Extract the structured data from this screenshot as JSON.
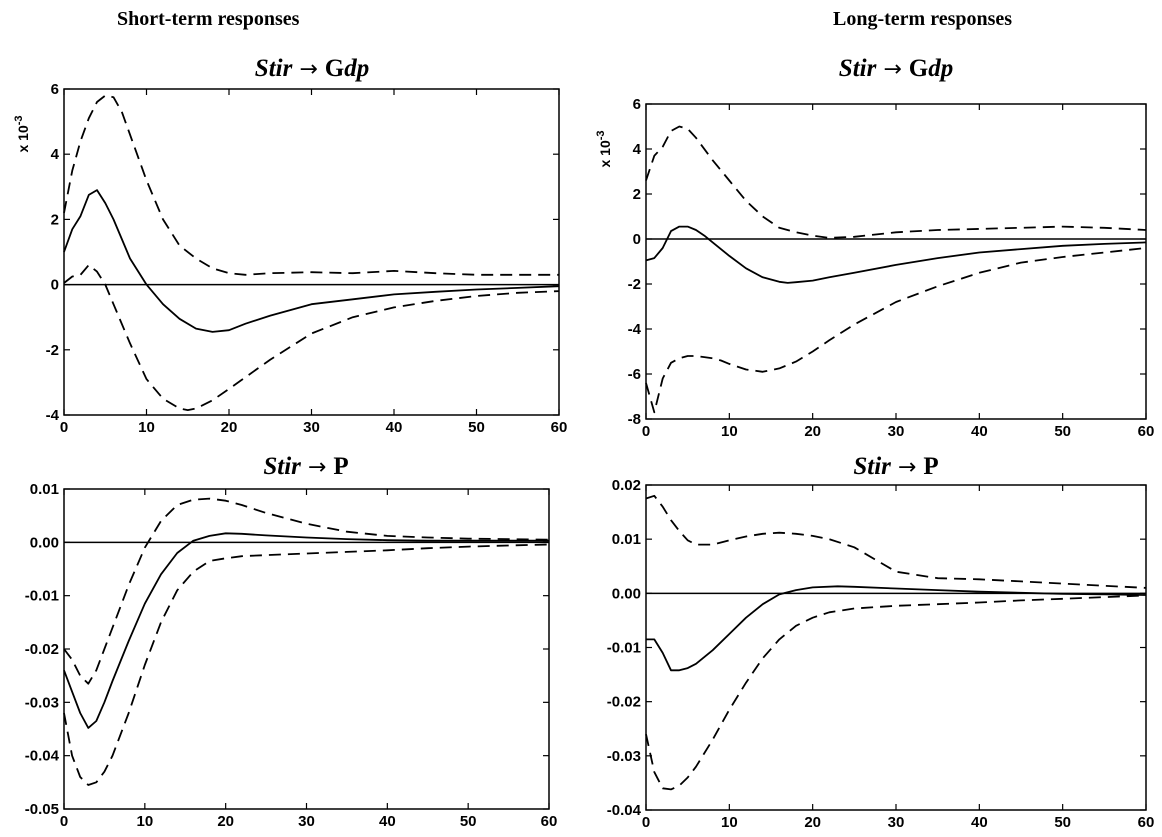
{
  "column_headings": {
    "left": "Short-term responses",
    "right": "Long-term responses"
  },
  "chart_data": [
    {
      "type": "line",
      "title": "Stir → Gdp",
      "title_parts": {
        "shock": "Stir",
        "arrow": "→",
        "variable_prefix": "G",
        "variable_suffix": "dp"
      },
      "y_multiplier": "x 10",
      "y_multiplier_exponent": "-3",
      "xlim": [
        0,
        60
      ],
      "ylim": [
        -4,
        6
      ],
      "xticks": [
        0,
        10,
        20,
        30,
        40,
        50,
        60
      ],
      "yticks": [
        -4,
        -2,
        0,
        2,
        4,
        6
      ],
      "ytick_labels": [
        "-4",
        "-2",
        "0",
        "2",
        "4",
        "6"
      ],
      "zero_line": true,
      "series": [
        {
          "role": "response",
          "style": "solid",
          "x": [
            0,
            1,
            2,
            3,
            4,
            5,
            6,
            7,
            8,
            9,
            10,
            12,
            14,
            16,
            18,
            20,
            22,
            25,
            30,
            35,
            40,
            45,
            50,
            55,
            60
          ],
          "y": [
            1.0,
            1.7,
            2.1,
            2.75,
            2.9,
            2.5,
            2.0,
            1.4,
            0.8,
            0.4,
            0.0,
            -0.6,
            -1.05,
            -1.35,
            -1.45,
            -1.4,
            -1.2,
            -0.95,
            -0.6,
            -0.45,
            -0.3,
            -0.22,
            -0.15,
            -0.1,
            -0.05
          ]
        },
        {
          "role": "upper band",
          "style": "dashed",
          "x": [
            0,
            1,
            2,
            3,
            4,
            5,
            6,
            7,
            8,
            10,
            12,
            14,
            16,
            18,
            20,
            22,
            25,
            30,
            35,
            40,
            45,
            50,
            55,
            60
          ],
          "y": [
            2.2,
            3.5,
            4.4,
            5.1,
            5.6,
            5.8,
            5.75,
            5.3,
            4.6,
            3.2,
            2.0,
            1.2,
            0.8,
            0.5,
            0.35,
            0.3,
            0.35,
            0.38,
            0.35,
            0.42,
            0.35,
            0.3,
            0.3,
            0.3
          ]
        },
        {
          "role": "lower band",
          "style": "dashed",
          "x": [
            0,
            1,
            2,
            3,
            4,
            5,
            6,
            8,
            10,
            12,
            14,
            15,
            16,
            18,
            20,
            25,
            30,
            35,
            40,
            45,
            50,
            55,
            60
          ],
          "y": [
            0.05,
            0.25,
            0.3,
            0.6,
            0.4,
            0.0,
            -0.6,
            -1.8,
            -2.9,
            -3.5,
            -3.8,
            -3.85,
            -3.8,
            -3.55,
            -3.2,
            -2.3,
            -1.5,
            -1.0,
            -0.7,
            -0.5,
            -0.35,
            -0.25,
            -0.2
          ]
        }
      ]
    },
    {
      "type": "line",
      "title": "Stir → Gdp",
      "title_parts": {
        "shock": "Stir",
        "arrow": "→",
        "variable_prefix": "G",
        "variable_suffix": "dp"
      },
      "y_multiplier": "x 10",
      "y_multiplier_exponent": "-3",
      "xlim": [
        0,
        60
      ],
      "ylim": [
        -8,
        6
      ],
      "xticks": [
        0,
        10,
        20,
        30,
        40,
        50,
        60
      ],
      "yticks": [
        -8,
        -6,
        -4,
        -2,
        0,
        2,
        4,
        6
      ],
      "ytick_labels": [
        "-8",
        "-6",
        "-4",
        "-2",
        "0",
        "2",
        "4",
        "6"
      ],
      "zero_line": true,
      "series": [
        {
          "role": "response",
          "style": "solid",
          "x": [
            0,
            1,
            2,
            3,
            4,
            5,
            6,
            7,
            8,
            10,
            12,
            14,
            16,
            17,
            18,
            20,
            22,
            25,
            30,
            35,
            40,
            45,
            50,
            55,
            60
          ],
          "y": [
            -0.95,
            -0.85,
            -0.4,
            0.35,
            0.55,
            0.55,
            0.4,
            0.15,
            -0.15,
            -0.75,
            -1.3,
            -1.7,
            -1.9,
            -1.95,
            -1.92,
            -1.85,
            -1.7,
            -1.5,
            -1.15,
            -0.85,
            -0.6,
            -0.45,
            -0.3,
            -0.22,
            -0.15
          ]
        },
        {
          "role": "upper band",
          "style": "dashed",
          "x": [
            0,
            1,
            2,
            3,
            4,
            5,
            6,
            8,
            10,
            12,
            14,
            16,
            18,
            20,
            22,
            25,
            30,
            35,
            40,
            45,
            50,
            55,
            60
          ],
          "y": [
            2.6,
            3.7,
            4.1,
            4.8,
            5.0,
            4.9,
            4.5,
            3.5,
            2.6,
            1.7,
            1.0,
            0.5,
            0.3,
            0.15,
            0.05,
            0.1,
            0.3,
            0.4,
            0.45,
            0.5,
            0.55,
            0.5,
            0.4
          ]
        },
        {
          "role": "lower band",
          "style": "dashed",
          "x": [
            0,
            1,
            2,
            3,
            4,
            5,
            6,
            7,
            8,
            9,
            10,
            12,
            14,
            16,
            18,
            20,
            22,
            25,
            30,
            35,
            40,
            45,
            50,
            55,
            60
          ],
          "y": [
            -6.4,
            -7.7,
            -6.2,
            -5.5,
            -5.3,
            -5.2,
            -5.2,
            -5.25,
            -5.3,
            -5.4,
            -5.55,
            -5.8,
            -5.9,
            -5.75,
            -5.45,
            -5.0,
            -4.5,
            -3.8,
            -2.8,
            -2.1,
            -1.5,
            -1.05,
            -0.8,
            -0.6,
            -0.4
          ]
        }
      ]
    },
    {
      "type": "line",
      "title": "Stir → P",
      "title_parts": {
        "shock": "Stir",
        "arrow": "→",
        "variable_prefix": "P",
        "variable_suffix": ""
      },
      "y_multiplier": "",
      "y_multiplier_exponent": "",
      "xlim": [
        0,
        60
      ],
      "ylim": [
        -0.05,
        0.01
      ],
      "xticks": [
        0,
        10,
        20,
        30,
        40,
        50,
        60
      ],
      "yticks": [
        -0.05,
        -0.04,
        -0.03,
        -0.02,
        -0.01,
        0.0,
        0.01
      ],
      "ytick_labels": [
        "-0.05",
        "-0.04",
        "-0.03",
        "-0.02",
        "-0.01",
        "0.00",
        "0.01"
      ],
      "zero_line": true,
      "series": [
        {
          "role": "response",
          "style": "solid",
          "x": [
            0,
            1,
            2,
            3,
            4,
            5,
            6,
            8,
            10,
            12,
            14,
            16,
            18,
            20,
            22,
            25,
            30,
            35,
            40,
            45,
            50,
            55,
            60
          ],
          "y": [
            -0.024,
            -0.028,
            -0.032,
            -0.0348,
            -0.0335,
            -0.03,
            -0.026,
            -0.0185,
            -0.0115,
            -0.006,
            -0.002,
            0.0003,
            0.0012,
            0.0017,
            0.0016,
            0.0013,
            0.0009,
            0.0006,
            0.0004,
            0.0003,
            0.0003,
            0.0003,
            0.0003
          ]
        },
        {
          "role": "upper band",
          "style": "dashed",
          "x": [
            0,
            1,
            2,
            3,
            4,
            5,
            6,
            8,
            10,
            12,
            14,
            16,
            18,
            20,
            22,
            25,
            30,
            35,
            40,
            45,
            50,
            55,
            60
          ],
          "y": [
            -0.02,
            -0.022,
            -0.025,
            -0.0265,
            -0.024,
            -0.02,
            -0.016,
            -0.008,
            -0.001,
            0.004,
            0.007,
            0.008,
            0.0082,
            0.0078,
            0.007,
            0.0055,
            0.0035,
            0.002,
            0.0012,
            0.0009,
            0.0007,
            0.0006,
            0.0005
          ]
        },
        {
          "role": "lower band",
          "style": "dashed",
          "x": [
            0,
            1,
            2,
            3,
            4,
            5,
            6,
            8,
            10,
            12,
            14,
            16,
            18,
            20,
            22,
            25,
            30,
            35,
            40,
            45,
            50,
            55,
            60
          ],
          "y": [
            -0.032,
            -0.04,
            -0.044,
            -0.0455,
            -0.045,
            -0.043,
            -0.04,
            -0.032,
            -0.023,
            -0.015,
            -0.009,
            -0.0055,
            -0.0035,
            -0.003,
            -0.0026,
            -0.0024,
            -0.0021,
            -0.0018,
            -0.0015,
            -0.0011,
            -0.0008,
            -0.0006,
            -0.0004
          ]
        }
      ]
    },
    {
      "type": "line",
      "title": "Stir → P",
      "title_parts": {
        "shock": "Stir",
        "arrow": "→",
        "variable_prefix": "P",
        "variable_suffix": ""
      },
      "y_multiplier": "",
      "y_multiplier_exponent": "",
      "xlim": [
        0,
        60
      ],
      "ylim": [
        -0.04,
        0.02
      ],
      "xticks": [
        0,
        10,
        20,
        30,
        40,
        50,
        60
      ],
      "yticks": [
        -0.04,
        -0.03,
        -0.02,
        -0.01,
        0.0,
        0.01,
        0.02
      ],
      "ytick_labels": [
        "-0.04",
        "-0.03",
        "-0.02",
        "-0.01",
        "0.00",
        "0.01",
        "0.02"
      ],
      "zero_line": true,
      "series": [
        {
          "role": "response",
          "style": "solid",
          "x": [
            0,
            1,
            2,
            3,
            4,
            5,
            6,
            8,
            10,
            12,
            14,
            16,
            18,
            20,
            23,
            25,
            30,
            35,
            40,
            45,
            50,
            55,
            60
          ],
          "y": [
            -0.0085,
            -0.0085,
            -0.011,
            -0.0142,
            -0.0142,
            -0.0138,
            -0.013,
            -0.0105,
            -0.0075,
            -0.0045,
            -0.002,
            -0.0002,
            0.0006,
            0.0011,
            0.0013,
            0.0012,
            0.0009,
            0.0006,
            0.0003,
            0.0001,
            -0.0001,
            -0.0002,
            -0.0003
          ]
        },
        {
          "role": "upper band",
          "style": "dashed",
          "x": [
            0,
            1,
            2,
            3,
            4,
            5,
            6,
            8,
            10,
            12,
            14,
            16,
            18,
            20,
            22,
            25,
            30,
            35,
            40,
            45,
            50,
            55,
            60
          ],
          "y": [
            0.0175,
            0.018,
            0.016,
            0.0135,
            0.0115,
            0.0098,
            0.009,
            0.009,
            0.0098,
            0.0105,
            0.011,
            0.0112,
            0.011,
            0.0106,
            0.01,
            0.0085,
            0.004,
            0.0028,
            0.0026,
            0.0022,
            0.0018,
            0.0014,
            0.001
          ]
        },
        {
          "role": "lower band",
          "style": "dashed",
          "x": [
            0,
            1,
            2,
            3,
            4,
            5,
            6,
            8,
            10,
            12,
            14,
            16,
            18,
            20,
            22,
            25,
            30,
            35,
            40,
            45,
            50,
            55,
            60
          ],
          "y": [
            -0.026,
            -0.033,
            -0.036,
            -0.0362,
            -0.0355,
            -0.034,
            -0.032,
            -0.027,
            -0.0215,
            -0.0165,
            -0.012,
            -0.0085,
            -0.006,
            -0.0045,
            -0.0035,
            -0.0028,
            -0.0023,
            -0.002,
            -0.0017,
            -0.0013,
            -0.001,
            -0.0007,
            -0.0004
          ]
        }
      ]
    }
  ]
}
